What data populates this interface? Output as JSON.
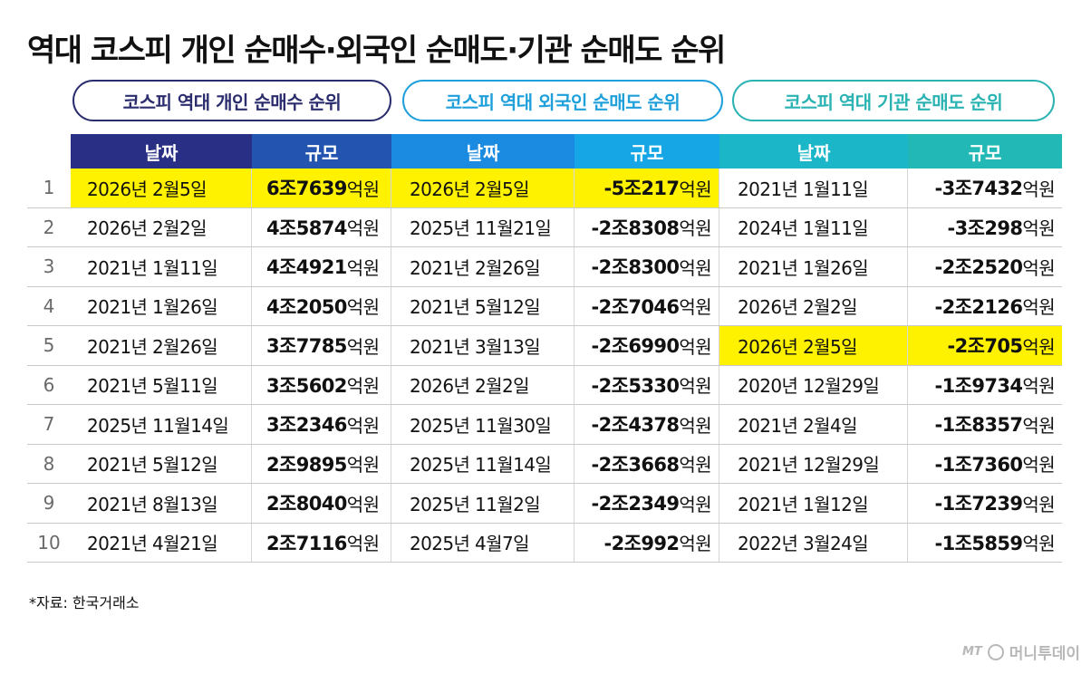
{
  "title": "역대 코스피 개인 순매수·외국인 순매도·기관 순매도 순위",
  "pills": {
    "individual": "코스피 역대 개인 순매수 순위",
    "foreign": "코스피 역대 외국인 순매도 순위",
    "institution": "코스피 역대 기관 순매도 순위"
  },
  "headers": {
    "date1": "날짜",
    "size1": "규모",
    "date2": "날짜",
    "size2": "규모",
    "date3": "날짜",
    "size3": "규모"
  },
  "unit_suffix": "억원",
  "rows": [
    {
      "rank": "1",
      "ind_date": "2026년 2월5일",
      "ind_pre": "6조7639",
      "for_date": "2026년 2월5일",
      "for_pre": "-5조217",
      "ins_date": "2021년 1월11일",
      "ins_pre": "-3조7432"
    },
    {
      "rank": "2",
      "ind_date": "2026년 2월2일",
      "ind_pre": "4조5874",
      "for_date": "2025년 11월21일",
      "for_pre": "-2조8308",
      "ins_date": "2024년 1월11일",
      "ins_pre": "-3조298"
    },
    {
      "rank": "3",
      "ind_date": "2021년 1월11일",
      "ind_pre": "4조4921",
      "for_date": "2021년 2월26일",
      "for_pre": "-2조8300",
      "ins_date": "2021년 1월26일",
      "ins_pre": "-2조2520"
    },
    {
      "rank": "4",
      "ind_date": "2021년 1월26일",
      "ind_pre": "4조2050",
      "for_date": "2021년 5월12일",
      "for_pre": "-2조7046",
      "ins_date": "2026년 2월2일",
      "ins_pre": "-2조2126"
    },
    {
      "rank": "5",
      "ind_date": "2021년 2월26일",
      "ind_pre": "3조7785",
      "for_date": "2021년 3월13일",
      "for_pre": "-2조6990",
      "ins_date": "2026년 2월5일",
      "ins_pre": "-2조705"
    },
    {
      "rank": "6",
      "ind_date": "2021년 5월11일",
      "ind_pre": "3조5602",
      "for_date": "2026년 2월2일",
      "for_pre": "-2조5330",
      "ins_date": "2020년 12월29일",
      "ins_pre": "-1조9734"
    },
    {
      "rank": "7",
      "ind_date": "2025년 11월14일",
      "ind_pre": "3조2346",
      "for_date": "2025년 11월30일",
      "for_pre": "-2조4378",
      "ins_date": "2021년 2월4일",
      "ins_pre": "-1조8357"
    },
    {
      "rank": "8",
      "ind_date": "2021년 5월12일",
      "ind_pre": "2조9895",
      "for_date": "2025년 11월14일",
      "for_pre": "-2조3668",
      "ins_date": "2021년 12월29일",
      "ins_pre": "-1조7360"
    },
    {
      "rank": "9",
      "ind_date": "2021년 8월13일",
      "ind_pre": "2조8040",
      "for_date": "2025년 11월2일",
      "for_pre": "-2조2349",
      "ins_date": "2021년 1월12일",
      "ins_pre": "-1조7239"
    },
    {
      "rank": "10",
      "ind_date": "2021년 4월21일",
      "ind_pre": "2조7116",
      "for_date": "2025년 4월7일",
      "for_pre": "-2조992",
      "ins_date": "2022년 3월24일",
      "ins_pre": "-1조5859"
    }
  ],
  "highlights": {
    "ind": [
      1
    ],
    "for": [
      1
    ],
    "ins": [
      5
    ]
  },
  "highlight_color": "#fff200",
  "source": "*자료: 한국거래소",
  "logo": {
    "mt": "MT",
    "name": "머니투데이"
  }
}
